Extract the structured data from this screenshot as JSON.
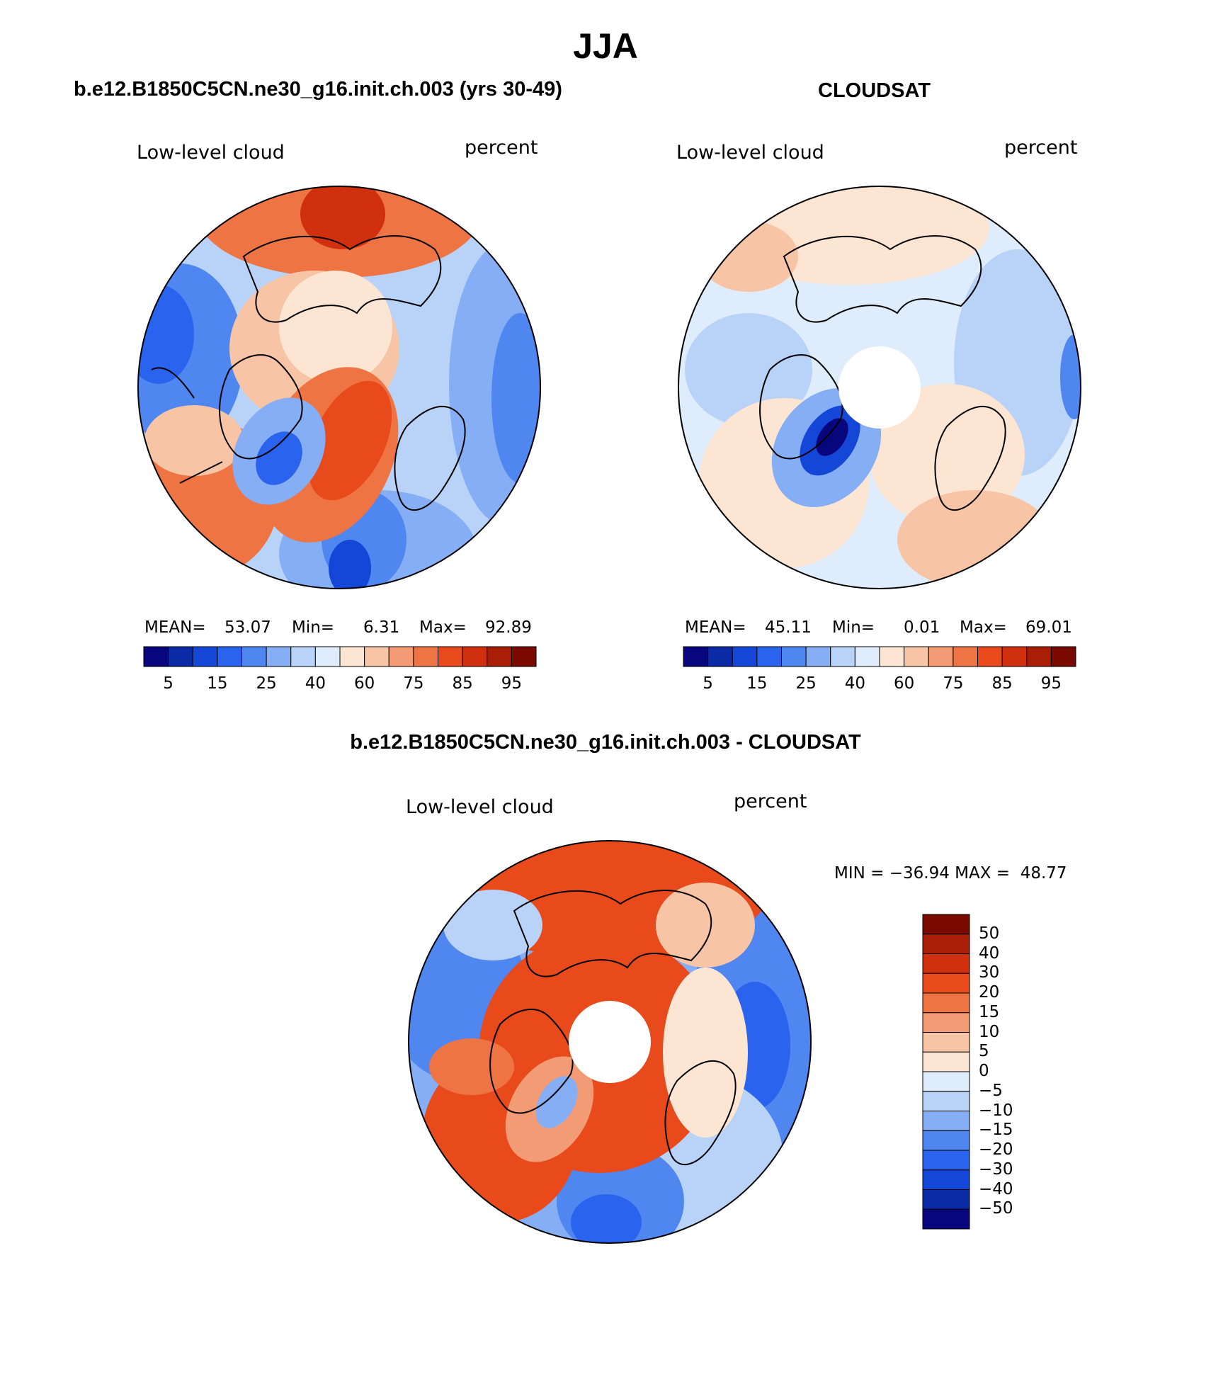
{
  "colors": {
    "seq": [
      "#08067c",
      "#0a2aa6",
      "#1446d8",
      "#2a63ee",
      "#4f86f0",
      "#86aef5",
      "#b9d2f8",
      "#deecfb",
      "#fde5d4",
      "#f8c4a6",
      "#f39b75",
      "#ef7444",
      "#e84a1c",
      "#d1300f",
      "#a91e06",
      "#7a0a00"
    ],
    "div": [
      "#08067c",
      "#0a2aa6",
      "#1446d8",
      "#2a63ee",
      "#4f86f0",
      "#86aef5",
      "#b9d2f8",
      "#deecfb",
      "#fde5d4",
      "#f8c4a6",
      "#f39b75",
      "#ef7444",
      "#e84a1c",
      "#d1300f",
      "#a91e06",
      "#7a0a00"
    ]
  },
  "figure": {
    "season": "JJA",
    "bottom_title": "b.e12.B1850C5CN.ne30_g16.init.ch.003 - CLOUDSAT"
  },
  "panels": [
    {
      "title": "b.e12.B1850C5CN.ne30_g16.init.ch.003 (yrs 30-49)",
      "variable": "Low-level cloud",
      "units": "percent",
      "mean_label": "MEAN=",
      "mean": "53.07",
      "min_label": "Min=",
      "min": "6.31",
      "max_label": "Max=",
      "max": "92.89",
      "colorbar_ticks": [
        "5",
        "15",
        "25",
        "40",
        "60",
        "75",
        "85",
        "95"
      ]
    },
    {
      "title": "CLOUDSAT",
      "variable": "Low-level cloud",
      "units": "percent",
      "mean_label": "MEAN=",
      "mean": "45.11",
      "min_label": "Min=",
      "min": "0.01",
      "max_label": "Max=",
      "max": "69.01",
      "colorbar_ticks": [
        "5",
        "15",
        "25",
        "40",
        "60",
        "75",
        "85",
        "95"
      ]
    },
    {
      "variable": "Low-level cloud",
      "units": "percent",
      "minmax": "MIN = −36.94 MAX =  48.77",
      "colorbar_ticks": [
        "50",
        "40",
        "30",
        "20",
        "15",
        "10",
        "5",
        "0",
        "−5",
        "−10",
        "−15",
        "−20",
        "−30",
        "−40",
        "−50"
      ]
    }
  ]
}
